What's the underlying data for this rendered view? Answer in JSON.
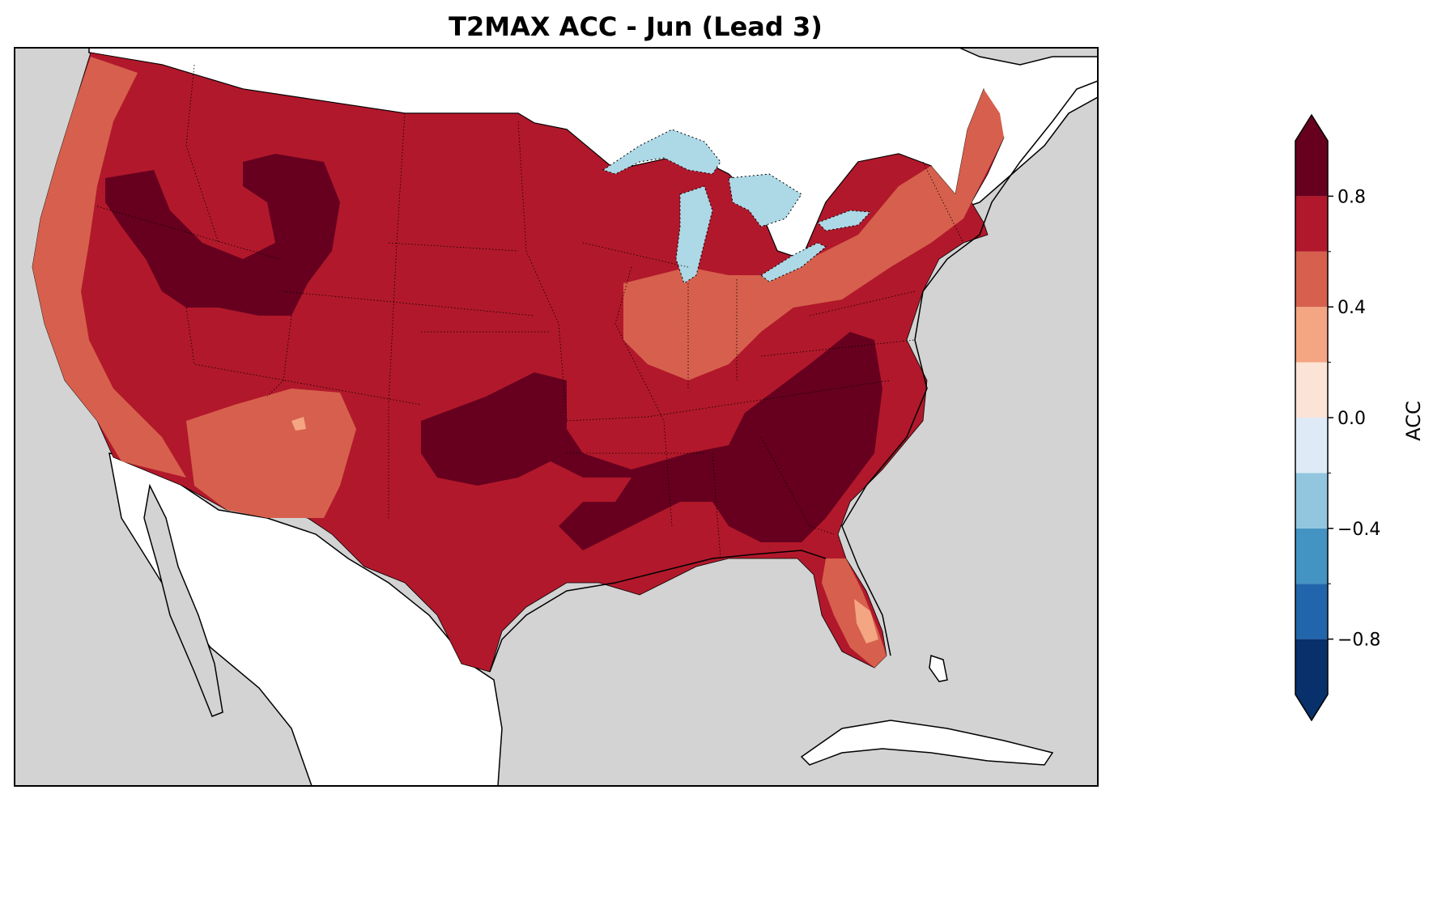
{
  "title": "T2MAX ACC - Jun (Lead 3)",
  "colorbar": {
    "label": "ACC",
    "ticks": [
      "0.8",
      "0.4",
      "0.0",
      "−0.4",
      "−0.8"
    ],
    "tick_values": [
      0.8,
      0.4,
      0.0,
      -0.4,
      -0.8
    ],
    "range": [
      -1.0,
      1.0
    ],
    "extend": "both",
    "bins": [
      {
        "from": -1.0,
        "to": -0.8,
        "color": "#08306b"
      },
      {
        "from": -0.8,
        "to": -0.6,
        "color": "#2166ac"
      },
      {
        "from": -0.6,
        "to": -0.4,
        "color": "#4393c3"
      },
      {
        "from": -0.4,
        "to": -0.2,
        "color": "#92c5de"
      },
      {
        "from": -0.2,
        "to": 0.0,
        "color": "#deebf7"
      },
      {
        "from": 0.0,
        "to": 0.2,
        "color": "#fbe3d6"
      },
      {
        "from": 0.2,
        "to": 0.4,
        "color": "#f4a582"
      },
      {
        "from": 0.4,
        "to": 0.6,
        "color": "#d6604d"
      },
      {
        "from": 0.6,
        "to": 0.8,
        "color": "#b2182b"
      },
      {
        "from": 0.8,
        "to": 1.0,
        "color": "#67001f"
      }
    ],
    "over_color": "#67001f",
    "under_color": "#08306b"
  },
  "map": {
    "ocean_color": "#d3d3d3",
    "land_color": "#ffffff",
    "lake_color": "#add8e6",
    "dominant_region_value": "0.6 to 0.8"
  }
}
